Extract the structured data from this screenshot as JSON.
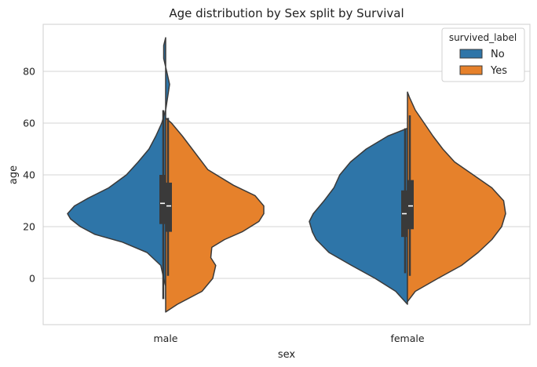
{
  "chart_data": {
    "type": "violin",
    "title": "Age distribution by Sex split by Survival",
    "xlabel": "sex",
    "ylabel": "age",
    "categories": [
      "male",
      "female"
    ],
    "ylim": [
      -18,
      100
    ],
    "yticks": [
      0,
      20,
      40,
      60,
      80
    ],
    "grid": "horizontal",
    "legend": {
      "title": "survived_label",
      "placement": "top-right",
      "entries": [
        "No",
        "Yes"
      ]
    },
    "colors": {
      "No": "#2e75a8",
      "Yes": "#e6812b",
      "outline": "#3a3a3a",
      "grid": "#d4d4d4",
      "frame": "#cfcfcf"
    },
    "series": [
      {
        "name": "No",
        "side": "left",
        "groups": [
          {
            "category": "male",
            "density": [
              [
                -8,
                0.0
              ],
              [
                -3,
                0.0
              ],
              [
                0,
                0.02
              ],
              [
                5,
                0.05
              ],
              [
                10,
                0.19
              ],
              [
                14,
                0.44
              ],
              [
                17,
                0.72
              ],
              [
                20,
                0.87
              ],
              [
                23,
                0.97
              ],
              [
                25,
                1.0
              ],
              [
                28,
                0.93
              ],
              [
                31,
                0.79
              ],
              [
                35,
                0.58
              ],
              [
                40,
                0.4
              ],
              [
                45,
                0.28
              ],
              [
                50,
                0.17
              ],
              [
                55,
                0.1
              ],
              [
                60,
                0.04
              ],
              [
                65,
                0.0
              ],
              [
                70,
                -0.02
              ],
              [
                75,
                -0.04
              ],
              [
                80,
                -0.01
              ],
              [
                85,
                0.02
              ],
              [
                90,
                0.02
              ],
              [
                93,
                0.0
              ]
            ],
            "median": 29,
            "q1": 21,
            "q3": 40,
            "whisker_low": -8,
            "whisker_high": 65
          },
          {
            "category": "female",
            "density": [
              [
                -10,
                0.0
              ],
              [
                -5,
                0.12
              ],
              [
                0,
                0.33
              ],
              [
                5,
                0.57
              ],
              [
                10,
                0.8
              ],
              [
                15,
                0.93
              ],
              [
                18,
                0.97
              ],
              [
                22,
                1.0
              ],
              [
                25,
                0.96
              ],
              [
                30,
                0.85
              ],
              [
                35,
                0.75
              ],
              [
                40,
                0.69
              ],
              [
                45,
                0.58
              ],
              [
                50,
                0.42
              ],
              [
                55,
                0.2
              ],
              [
                58,
                0.0
              ]
            ],
            "median": 25,
            "q1": 16,
            "q3": 34,
            "whisker_low": 2,
            "whisker_high": 58
          }
        ]
      },
      {
        "name": "Yes",
        "side": "right",
        "groups": [
          {
            "category": "male",
            "density": [
              [
                -13,
                0.0
              ],
              [
                -10,
                0.12
              ],
              [
                -5,
                0.37
              ],
              [
                0,
                0.48
              ],
              [
                5,
                0.51
              ],
              [
                8,
                0.46
              ],
              [
                12,
                0.47
              ],
              [
                15,
                0.6
              ],
              [
                18,
                0.78
              ],
              [
                22,
                0.95
              ],
              [
                25,
                1.0
              ],
              [
                28,
                1.0
              ],
              [
                32,
                0.91
              ],
              [
                36,
                0.69
              ],
              [
                42,
                0.43
              ],
              [
                50,
                0.27
              ],
              [
                55,
                0.17
              ],
              [
                60,
                0.06
              ],
              [
                62,
                0.0
              ]
            ],
            "median": 28,
            "q1": 18,
            "q3": 37,
            "whisker_low": 1,
            "whisker_high": 62
          },
          {
            "category": "female",
            "density": [
              [
                -9,
                0.0
              ],
              [
                -5,
                0.08
              ],
              [
                0,
                0.31
              ],
              [
                5,
                0.55
              ],
              [
                10,
                0.72
              ],
              [
                15,
                0.86
              ],
              [
                20,
                0.96
              ],
              [
                25,
                1.0
              ],
              [
                30,
                0.98
              ],
              [
                35,
                0.86
              ],
              [
                40,
                0.67
              ],
              [
                45,
                0.48
              ],
              [
                50,
                0.36
              ],
              [
                55,
                0.26
              ],
              [
                60,
                0.17
              ],
              [
                65,
                0.08
              ],
              [
                70,
                0.02
              ],
              [
                72,
                0.0
              ]
            ],
            "median": 28,
            "q1": 19,
            "q3": 38,
            "whisker_low": 1,
            "whisker_high": 63
          }
        ]
      }
    ]
  }
}
